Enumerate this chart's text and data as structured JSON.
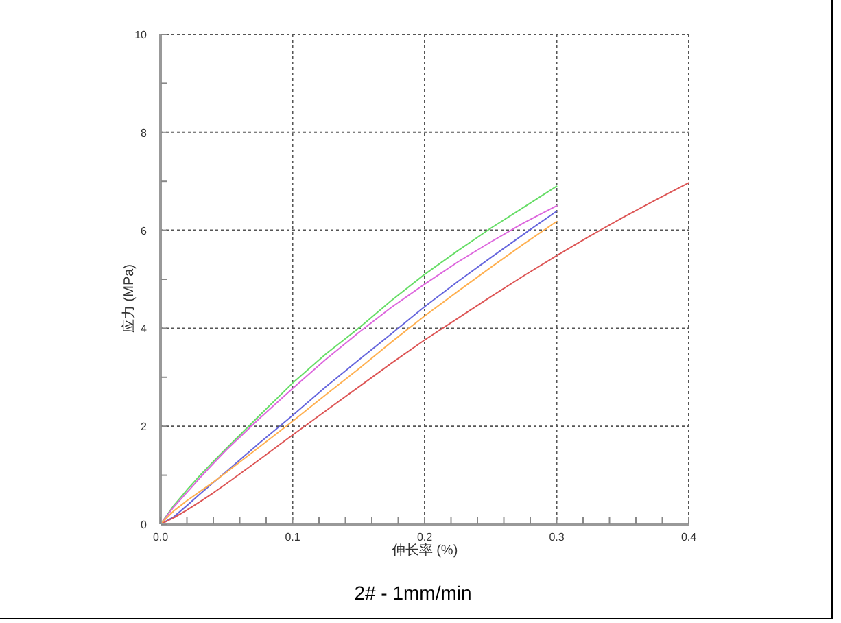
{
  "chart_data": {
    "type": "line",
    "title": "2# - 1mm/min",
    "xlabel": "伸长率 (%)",
    "ylabel": "应力 (MPa)",
    "xlim": [
      0,
      0.4
    ],
    "ylim": [
      0,
      10
    ],
    "xticks": [
      {
        "value": 0,
        "label": "0.0"
      },
      {
        "value": 0.02,
        "label": null
      },
      {
        "value": 0.04,
        "label": null
      },
      {
        "value": 0.06,
        "label": null
      },
      {
        "value": 0.08,
        "label": null
      },
      0.1,
      {
        "value": 0.12,
        "label": null
      },
      {
        "value": 0.14,
        "label": null
      },
      {
        "value": 0.16,
        "label": null
      },
      {
        "value": 0.18,
        "label": null
      },
      0.2,
      {
        "value": 0.22,
        "label": null
      },
      {
        "value": 0.24,
        "label": null
      },
      {
        "value": 0.26,
        "label": null
      },
      {
        "value": 0.28,
        "label": null
      },
      0.3,
      {
        "value": 0.32,
        "label": null
      },
      {
        "value": 0.34,
        "label": null
      },
      {
        "value": 0.36,
        "label": null
      },
      {
        "value": 0.38,
        "label": null
      },
      0.4
    ],
    "yticks": [
      0,
      {
        "value": 1,
        "label": null
      },
      2,
      {
        "value": 3,
        "label": null
      },
      4,
      {
        "value": 5,
        "label": null
      },
      6,
      {
        "value": 7,
        "label": null
      },
      8,
      {
        "value": 9,
        "label": null
      },
      10
    ],
    "grid": true,
    "series": [
      {
        "color": "#66dd66",
        "x": [
          0,
          0.01,
          0.02,
          0.03,
          0.04,
          0.05,
          0.075,
          0.1,
          0.125,
          0.15,
          0.175,
          0.2,
          0.225,
          0.25,
          0.275,
          0.3
        ],
        "values": [
          0,
          0.38,
          0.7,
          1.0,
          1.28,
          1.55,
          2.22,
          2.88,
          3.47,
          4.0,
          4.57,
          5.1,
          5.58,
          6.04,
          6.47,
          6.9
        ]
      },
      {
        "color": "#dd66dd",
        "x": [
          0,
          0.01,
          0.02,
          0.03,
          0.04,
          0.05,
          0.075,
          0.1,
          0.125,
          0.15,
          0.175,
          0.2,
          0.225,
          0.25,
          0.275,
          0.3
        ],
        "values": [
          0,
          0.35,
          0.65,
          0.95,
          1.24,
          1.52,
          2.16,
          2.77,
          3.36,
          3.91,
          4.43,
          4.9,
          5.35,
          5.76,
          6.15,
          6.5
        ]
      },
      {
        "color": "#6666dd",
        "x": [
          0,
          0.01,
          0.02,
          0.03,
          0.04,
          0.05,
          0.075,
          0.1,
          0.125,
          0.15,
          0.175,
          0.2,
          0.225,
          0.25,
          0.275,
          0.3
        ],
        "values": [
          0,
          0.15,
          0.38,
          0.62,
          0.85,
          1.08,
          1.66,
          2.22,
          2.8,
          3.35,
          3.89,
          4.44,
          4.95,
          5.44,
          5.92,
          6.39
        ]
      },
      {
        "color": "#ffb050",
        "x": [
          0,
          0.01,
          0.02,
          0.03,
          0.04,
          0.05,
          0.075,
          0.1,
          0.125,
          0.15,
          0.175,
          0.2,
          0.225,
          0.25,
          0.275,
          0.3
        ],
        "values": [
          0,
          0.27,
          0.48,
          0.67,
          0.86,
          1.06,
          1.58,
          2.1,
          2.64,
          3.17,
          3.72,
          4.25,
          4.75,
          5.24,
          5.72,
          6.18
        ]
      },
      {
        "color": "#dd5555",
        "x": [
          0,
          0.01,
          0.02,
          0.03,
          0.04,
          0.05,
          0.075,
          0.1,
          0.125,
          0.15,
          0.175,
          0.2,
          0.225,
          0.25,
          0.275,
          0.3,
          0.325,
          0.35,
          0.375,
          0.4
        ],
        "values": [
          0,
          0.13,
          0.29,
          0.46,
          0.64,
          0.83,
          1.32,
          1.82,
          2.31,
          2.8,
          3.29,
          3.76,
          4.2,
          4.64,
          5.07,
          5.48,
          5.88,
          6.26,
          6.62,
          6.97
        ]
      }
    ]
  }
}
